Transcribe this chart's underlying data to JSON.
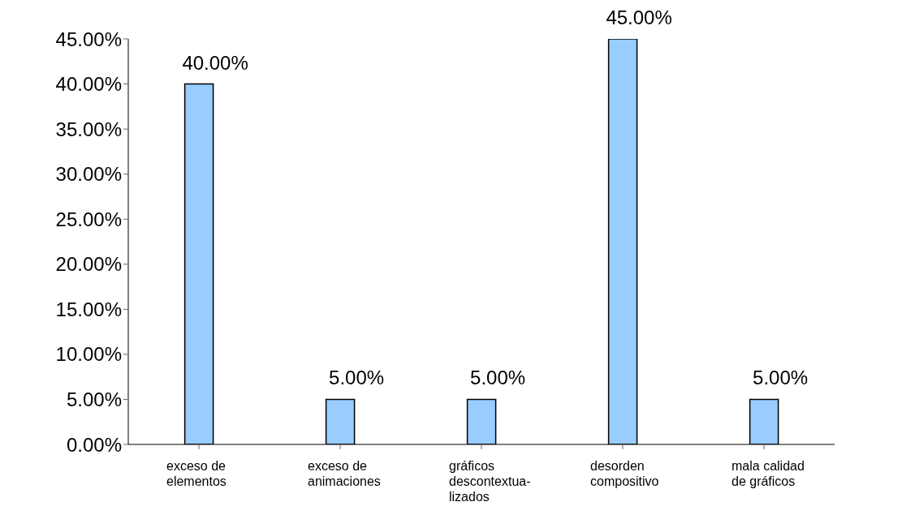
{
  "chart_data": {
    "type": "bar",
    "categories": [
      "exceso de elementos",
      "exceso de animaciones",
      "gráficos descontextua-lizados",
      "desorden compositivo",
      "mala calidad de gráficos"
    ],
    "values": [
      40,
      5,
      5,
      45,
      5
    ],
    "value_labels": [
      "40.00%",
      "5.00%",
      "5.00%",
      "45.00%",
      "5.00%"
    ],
    "color": "#99ccff",
    "ylim": [
      0,
      45
    ],
    "yticks": [
      {
        "value": 0,
        "label": "0.00%"
      },
      {
        "value": 5,
        "label": "5.00%"
      },
      {
        "value": 10,
        "label": "10.00%"
      },
      {
        "value": 15,
        "label": "15.00%"
      },
      {
        "value": 20,
        "label": "20.00%"
      },
      {
        "value": 25,
        "label": "25.00%"
      },
      {
        "value": 30,
        "label": "30.00%"
      },
      {
        "value": 35,
        "label": "35.00%"
      },
      {
        "value": 40,
        "label": "40.00%"
      },
      {
        "value": 45,
        "label": "45.00%"
      }
    ],
    "grid": false
  }
}
